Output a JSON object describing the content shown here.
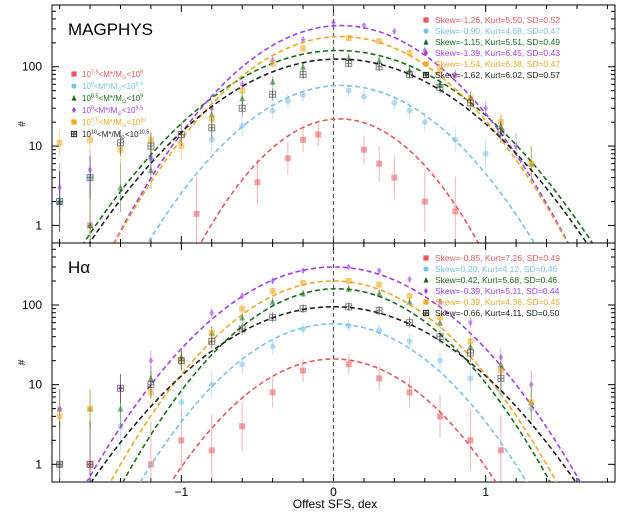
{
  "chart_data": {
    "type": "scatter",
    "xlabel": "Offest SFS, dex",
    "xlim": [
      -1.85,
      1.85
    ],
    "ylim": [
      0.6,
      600
    ],
    "x_ticks": [
      {
        "v": -1,
        "label": "−1"
      },
      {
        "v": 0,
        "label": "0"
      },
      {
        "v": 1,
        "label": "1"
      }
    ],
    "y_ticks": [
      {
        "v": 1,
        "label": "1"
      },
      {
        "v": 10,
        "label": "10"
      },
      {
        "v": 100,
        "label": "100"
      }
    ],
    "panels": [
      {
        "title": "MAGPHYS",
        "ylabel": "#",
        "bin_legend": [
          {
            "pre": "10",
            "e1": "7.5",
            "mid": "<M*/M",
            "sub": "⊙",
            "lt": "<10",
            "e2": "8"
          },
          {
            "pre": "10",
            "e1": "8",
            "mid": "<M*/M",
            "sub": "⊙",
            "lt": "<10",
            "e2": "8.5"
          },
          {
            "pre": "10",
            "e1": "8.5",
            "mid": "<M*/M",
            "sub": "⊙",
            "lt": "<10",
            "e2": "9"
          },
          {
            "pre": "10",
            "e1": "9",
            "mid": "<M*/M",
            "sub": "⊙",
            "lt": "<10",
            "e2": "9.5"
          },
          {
            "pre": "10",
            "e1": "9.5",
            "mid": "<M*/M",
            "sub": "⊙",
            "lt": "<10",
            "e2": "10"
          },
          {
            "pre": "10",
            "e1": "10",
            "mid": "<M*/M",
            "sub": "⊙",
            "lt": "<10",
            "e2": "10.5"
          }
        ],
        "series": [
          {
            "name": "Skew=-1.26, Kurt=5.50, SD=0.52",
            "color": "#e8585c",
            "marker": "square",
            "peak": 22,
            "mu": 0.04,
            "sigma": 0.34,
            "points": [
              [
                -1.6,
                1
              ],
              [
                -0.9,
                1.4
              ],
              [
                -0.5,
                3.5
              ],
              [
                -0.3,
                7
              ],
              [
                -0.2,
                12
              ],
              [
                -0.1,
                14
              ],
              [
                0.2,
                9
              ],
              [
                0.3,
                6
              ],
              [
                0.4,
                4
              ],
              [
                0.6,
                2
              ],
              [
                0.8,
                1.5
              ]
            ]
          },
          {
            "name": "Skew=-0.90, Kurt=4.68, SD=0.47",
            "color": "#7cc2e8",
            "marker": "circle",
            "peak": 58,
            "mu": 0.05,
            "sigma": 0.42,
            "points": [
              [
                -1.8,
                2
              ],
              [
                -1.6,
                4
              ],
              [
                -1.2,
                7
              ],
              [
                -0.8,
                12
              ],
              [
                -0.6,
                18
              ],
              [
                -0.4,
                28
              ],
              [
                -0.3,
                37
              ],
              [
                -0.2,
                44
              ],
              [
                0.1,
                50
              ],
              [
                0.2,
                42
              ],
              [
                0.4,
                35
              ],
              [
                0.5,
                28
              ],
              [
                0.6,
                20
              ],
              [
                0.8,
                12
              ],
              [
                1.0,
                8
              ]
            ]
          },
          {
            "name": "Skew=-1.15, Kurt=5.51, SD=0.49",
            "color": "#1a6e1a",
            "marker": "triangle",
            "peak": 160,
            "mu": 0.03,
            "sigma": 0.5,
            "points": [
              [
                -1.8,
                2
              ],
              [
                -1.6,
                1
              ],
              [
                -1.4,
                3
              ],
              [
                -1.2,
                5
              ],
              [
                -0.8,
                25
              ],
              [
                -0.6,
                40
              ],
              [
                -0.4,
                65
              ],
              [
                -0.2,
                100
              ],
              [
                0.1,
                130
              ],
              [
                0.3,
                120
              ],
              [
                0.5,
                90
              ],
              [
                0.7,
                60
              ],
              [
                0.9,
                40
              ],
              [
                1.1,
                18
              ],
              [
                1.3,
                6
              ]
            ]
          },
          {
            "name": "Skew=-1.39, Kurt=6.45, SD=0.43",
            "color": "#a43ee8",
            "marker": "diamond",
            "peak": 330,
            "mu": 0.05,
            "sigma": 0.42,
            "points": [
              [
                -1.8,
                3
              ],
              [
                -1.6,
                5
              ],
              [
                -1.2,
                7
              ],
              [
                -0.8,
                30
              ],
              [
                -0.6,
                60
              ],
              [
                -0.4,
                120
              ],
              [
                -0.2,
                220
              ],
              [
                0.0,
                360
              ],
              [
                0.2,
                330
              ],
              [
                0.4,
                280
              ],
              [
                0.6,
                160
              ],
              [
                0.8,
                80
              ],
              [
                1.0,
                30
              ],
              [
                1.2,
                10
              ]
            ]
          },
          {
            "name": "Skew=-1.54, Kurt=6.38, SD=0.47",
            "color": "#f0a820",
            "marker": "square",
            "peak": 240,
            "mu": 0.05,
            "sigma": 0.43,
            "points": [
              [
                -1.8,
                11
              ],
              [
                -1.6,
                12
              ],
              [
                -1.4,
                9
              ],
              [
                -1.2,
                12
              ],
              [
                -1.0,
                10
              ],
              [
                -0.8,
                22
              ],
              [
                -0.6,
                50
              ],
              [
                -0.4,
                110
              ],
              [
                -0.2,
                170
              ],
              [
                0.1,
                230
              ],
              [
                0.3,
                210
              ],
              [
                0.5,
                150
              ],
              [
                0.7,
                90
              ],
              [
                0.9,
                40
              ],
              [
                1.1,
                20
              ],
              [
                1.3,
                6
              ]
            ]
          },
          {
            "name": "Skew=-1.62, Kurt=6.02, SD=0.57",
            "color": "#222222",
            "marker": "boxplus",
            "peak": 125,
            "mu": 0.03,
            "sigma": 0.5,
            "points": [
              [
                -1.8,
                2
              ],
              [
                -1.6,
                4
              ],
              [
                -1.4,
                11
              ],
              [
                -1.2,
                10
              ],
              [
                -1.0,
                14
              ],
              [
                -0.8,
                17
              ],
              [
                -0.6,
                30
              ],
              [
                -0.4,
                45
              ],
              [
                -0.2,
                80
              ],
              [
                0.1,
                110
              ],
              [
                0.3,
                100
              ],
              [
                0.5,
                80
              ],
              [
                0.7,
                55
              ],
              [
                0.9,
                35
              ],
              [
                1.1,
                15
              ]
            ]
          }
        ]
      },
      {
        "title": "Hα",
        "ylabel": "#",
        "series": [
          {
            "name": "Skew=-0.85, Kurt=7.26, SD=0.49",
            "color": "#e8585c",
            "marker": "square",
            "peak": 21,
            "mu": 0.0,
            "sigma": 0.4,
            "points": [
              [
                -1.8,
                1
              ],
              [
                -1.6,
                1
              ],
              [
                -1.2,
                1
              ],
              [
                -1.0,
                2
              ],
              [
                -0.8,
                1.5
              ],
              [
                -0.6,
                3
              ],
              [
                -0.4,
                8
              ],
              [
                -0.2,
                15
              ],
              [
                0.1,
                18
              ],
              [
                0.3,
                12
              ],
              [
                0.5,
                8
              ],
              [
                0.7,
                4
              ],
              [
                0.9,
                2
              ],
              [
                1.1,
                1.5
              ]
            ]
          },
          {
            "name": "Skew=0.20, Kurt=4.12, SD=0.46",
            "color": "#7cc2e8",
            "marker": "circle",
            "peak": 58,
            "mu": 0.0,
            "sigma": 0.42,
            "points": [
              [
                -1.8,
                1
              ],
              [
                -1.4,
                3
              ],
              [
                -1.0,
                6
              ],
              [
                -0.8,
                10
              ],
              [
                -0.6,
                18
              ],
              [
                -0.4,
                30
              ],
              [
                -0.2,
                50
              ],
              [
                0.1,
                55
              ],
              [
                0.3,
                48
              ],
              [
                0.5,
                35
              ],
              [
                0.7,
                20
              ],
              [
                0.9,
                12
              ],
              [
                1.1,
                8
              ],
              [
                1.3,
                5
              ]
            ]
          },
          {
            "name": "Skew=0.42, Kurt=5.68, SD=0.46",
            "color": "#1a6e1a",
            "marker": "triangle",
            "peak": 160,
            "mu": 0.02,
            "sigma": 0.42,
            "points": [
              [
                -1.8,
                5
              ],
              [
                -1.6,
                5
              ],
              [
                -1.4,
                5
              ],
              [
                -1.2,
                12
              ],
              [
                -1.0,
                22
              ],
              [
                -0.8,
                45
              ],
              [
                -0.6,
                70
              ],
              [
                -0.4,
                110
              ],
              [
                -0.2,
                140
              ],
              [
                0.1,
                160
              ],
              [
                0.3,
                140
              ],
              [
                0.5,
                110
              ],
              [
                0.7,
                60
              ],
              [
                0.9,
                30
              ],
              [
                1.1,
                18
              ],
              [
                1.3,
                6
              ]
            ]
          },
          {
            "name": "Skew=-0.39, Kurt=5.11, SD=0.44",
            "color": "#a43ee8",
            "marker": "diamond",
            "peak": 300,
            "mu": 0.0,
            "sigma": 0.46,
            "points": [
              [
                -1.8,
                5
              ],
              [
                -1.4,
                9
              ],
              [
                -1.2,
                20
              ],
              [
                -0.8,
                80
              ],
              [
                -0.6,
                130
              ],
              [
                -0.4,
                200
              ],
              [
                -0.2,
                270
              ],
              [
                0.1,
                300
              ],
              [
                0.3,
                270
              ],
              [
                0.5,
                210
              ],
              [
                0.7,
                110
              ],
              [
                0.9,
                60
              ],
              [
                1.1,
                22
              ],
              [
                1.3,
                10
              ]
            ]
          },
          {
            "name": "Skew=-0.39, Kurt=4.36, SD=0.45",
            "color": "#f0a820",
            "marker": "square",
            "peak": 200,
            "mu": 0.0,
            "sigma": 0.43,
            "points": [
              [
                -1.8,
                4
              ],
              [
                -1.6,
                5
              ],
              [
                -1.2,
                8
              ],
              [
                -1.0,
                20
              ],
              [
                -0.8,
                45
              ],
              [
                -0.6,
                90
              ],
              [
                -0.4,
                150
              ],
              [
                -0.2,
                190
              ],
              [
                0.1,
                200
              ],
              [
                0.3,
                180
              ],
              [
                0.5,
                130
              ],
              [
                0.7,
                70
              ],
              [
                0.9,
                35
              ],
              [
                1.1,
                15
              ],
              [
                1.3,
                6
              ]
            ]
          },
          {
            "name": "Skew=-0.66, Kurt=4.11, SD=0.50",
            "color": "#222222",
            "marker": "boxplus",
            "peak": 95,
            "mu": 0.0,
            "sigma": 0.5,
            "points": [
              [
                -1.8,
                1
              ],
              [
                -1.6,
                1
              ],
              [
                -1.4,
                9
              ],
              [
                -1.2,
                10
              ],
              [
                -1.0,
                20
              ],
              [
                -0.8,
                35
              ],
              [
                -0.6,
                50
              ],
              [
                -0.4,
                70
              ],
              [
                -0.2,
                90
              ],
              [
                0.1,
                95
              ],
              [
                0.3,
                85
              ],
              [
                0.5,
                60
              ],
              [
                0.7,
                40
              ],
              [
                0.9,
                25
              ],
              [
                1.1,
                12
              ]
            ]
          }
        ]
      }
    ]
  }
}
